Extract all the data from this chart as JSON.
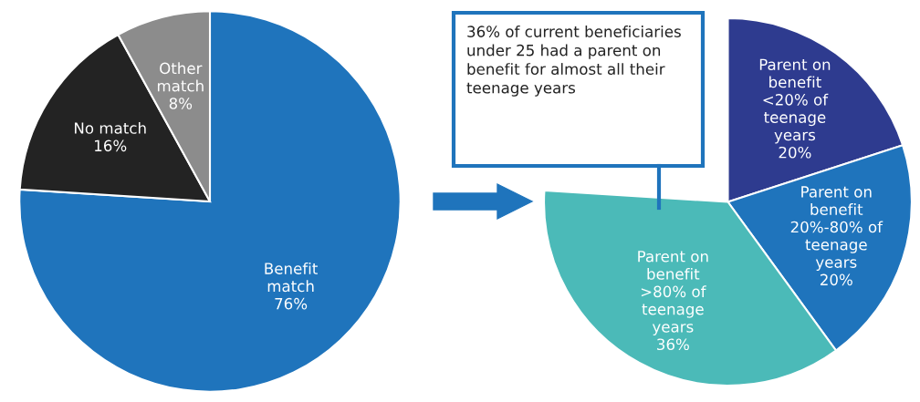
{
  "chart_data": [
    {
      "type": "pie",
      "categories": [
        "Benefit\nmatch",
        "No match",
        "Other\nmatch"
      ],
      "values": [
        76,
        16,
        8
      ],
      "value_labels": [
        "76%",
        "16%",
        "8%"
      ],
      "colors": [
        "#1f74bc",
        "#232323",
        "#8c8c8c"
      ]
    },
    {
      "type": "pie",
      "categories": [
        "Parent on\nbenefit\n<20% of\nteenage\nyears",
        "Parent on\nbenefit\n20%-80% of\nteenage\nyears",
        "Parent on\nbenefit\n>80% of\nteenage\nyears"
      ],
      "values": [
        20,
        20,
        36
      ],
      "value_labels": [
        "20%",
        "20%",
        "36%"
      ],
      "colors": [
        "#2e3b8f",
        "#1f74bc",
        "#4bbab8"
      ],
      "annotations": [
        "36% of current beneficiaries\nunder 25 had a parent on\nbenefit for almost all their\nteenage years"
      ]
    }
  ]
}
